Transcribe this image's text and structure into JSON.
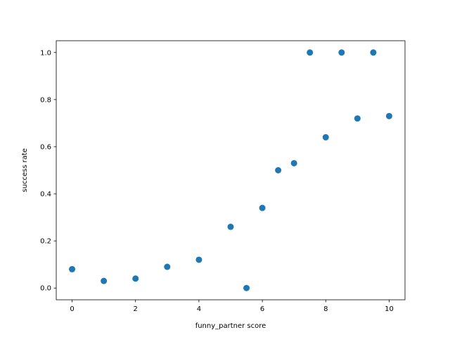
{
  "chart_data": {
    "type": "scatter",
    "title": "",
    "xlabel": "funny_partner score",
    "ylabel": "success rate",
    "xlim": [
      -0.5,
      10.5
    ],
    "ylim": [
      -0.05,
      1.05
    ],
    "xticks": [
      0,
      2,
      4,
      6,
      8,
      10
    ],
    "xtick_labels": [
      "0",
      "2",
      "4",
      "6",
      "8",
      "10"
    ],
    "yticks": [
      0.0,
      0.2,
      0.4,
      0.6,
      0.8,
      1.0
    ],
    "ytick_labels": [
      "0.0",
      "0.2",
      "0.4",
      "0.6",
      "0.8",
      "1.0"
    ],
    "grid": false,
    "marker_color": "#1f77b4",
    "points": [
      {
        "x": 0,
        "y": 0.08
      },
      {
        "x": 1,
        "y": 0.03
      },
      {
        "x": 2,
        "y": 0.04
      },
      {
        "x": 3,
        "y": 0.09
      },
      {
        "x": 4,
        "y": 0.12
      },
      {
        "x": 5,
        "y": 0.26
      },
      {
        "x": 5.5,
        "y": 0.0
      },
      {
        "x": 6,
        "y": 0.34
      },
      {
        "x": 6.5,
        "y": 0.5
      },
      {
        "x": 7,
        "y": 0.53
      },
      {
        "x": 7.5,
        "y": 1.0
      },
      {
        "x": 8,
        "y": 0.64
      },
      {
        "x": 8.5,
        "y": 1.0
      },
      {
        "x": 9,
        "y": 0.72
      },
      {
        "x": 9.5,
        "y": 1.0
      },
      {
        "x": 10,
        "y": 0.73
      }
    ]
  }
}
